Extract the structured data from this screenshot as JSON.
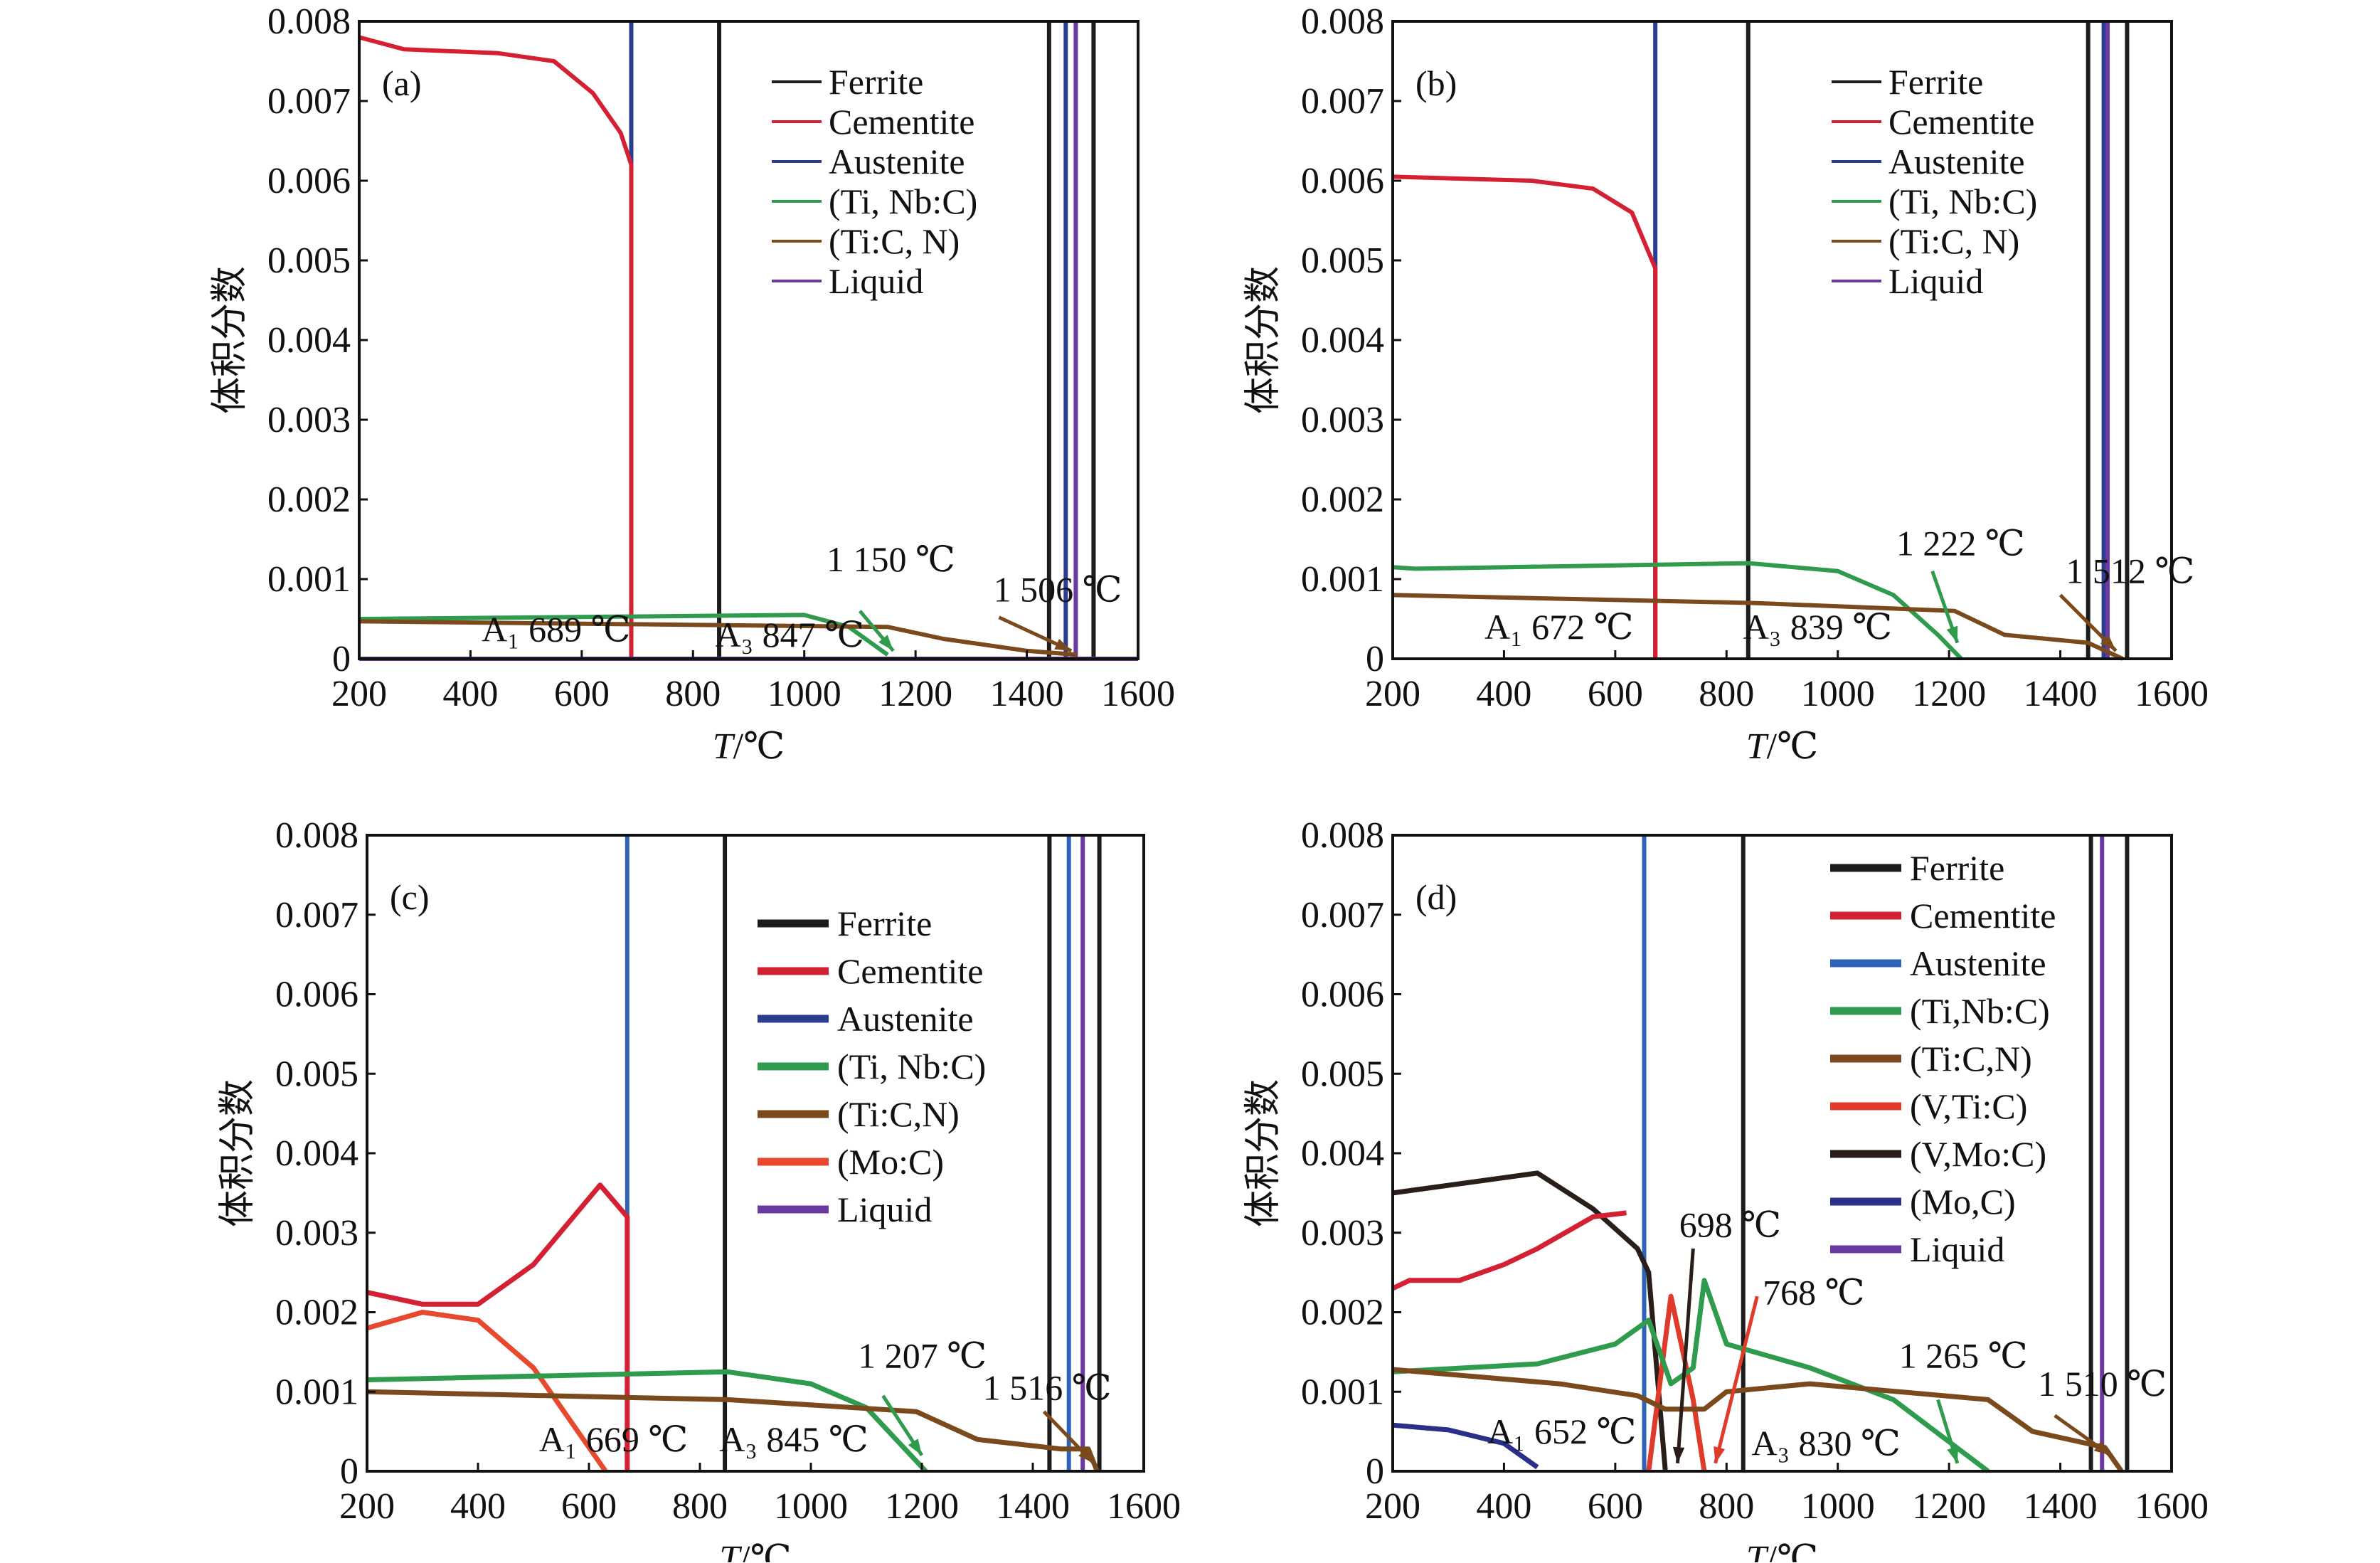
{
  "colors": {
    "ferrite": "#1c1c1c",
    "cementite": "#d42033",
    "austenite_ab": "#2a3d8f",
    "austenite_cd": "#2f63b8",
    "tinbc": "#2e9b4d",
    "ticn": "#7a4a1c",
    "liquid": "#6a3aa0",
    "moc": "#e8482e",
    "vtic": "#e03a2a",
    "vmoc": "#2a1e1a",
    "mo_c": "#2a2f8a"
  },
  "chart_data": [
    {
      "type": "line",
      "panel_label": "(a)",
      "ylabel": "体积分数",
      "xlabel_var": "T",
      "xlabel_unit": "/℃",
      "xlim": [
        200,
        1600
      ],
      "ylim": [
        0,
        0.008
      ],
      "grid": false,
      "legend_placement": "top-right",
      "xticks": [
        "200",
        "400",
        "600",
        "800",
        "1000",
        "1200",
        "1400",
        "1600"
      ],
      "yticks": [
        "0",
        "0.001",
        "0.002",
        "0.003",
        "0.004",
        "0.005",
        "0.006",
        "0.007",
        "0.008"
      ],
      "legend": [
        {
          "name": "Ferrite",
          "color": "ferrite"
        },
        {
          "name": "Cementite",
          "color": "cementite"
        },
        {
          "name": "Austenite",
          "color": "austenite_ab"
        },
        {
          "name": "(Ti, Nb:C)",
          "color": "tinbc"
        },
        {
          "name": "(Ti:C, N)",
          "color": "ticn"
        },
        {
          "name": "Liquid",
          "color": "liquid"
        }
      ],
      "series": [
        {
          "name": "Cementite",
          "color": "cementite",
          "points": [
            [
              200,
              0.0078
            ],
            [
              280,
              0.00765
            ],
            [
              450,
              0.0076
            ],
            [
              550,
              0.0075
            ],
            [
              620,
              0.0071
            ],
            [
              670,
              0.0066
            ],
            [
              689,
              0.0062
            ],
            [
              689,
              0
            ]
          ]
        },
        {
          "name": "(Ti, Nb:C)",
          "color": "tinbc",
          "points": [
            [
              200,
              0.0005
            ],
            [
              1000,
              0.00055
            ],
            [
              1080,
              0.0004
            ],
            [
              1150,
              5e-05
            ]
          ]
        },
        {
          "name": "(Ti:C, N)",
          "color": "ticn",
          "points": [
            [
              200,
              0.00047
            ],
            [
              1150,
              0.0004
            ],
            [
              1250,
              0.00025
            ],
            [
              1400,
              0.0001
            ],
            [
              1490,
              5e-05
            ]
          ]
        },
        {
          "name": "Liquid",
          "color": "liquid",
          "points": [
            [
              200,
              0.0
            ],
            [
              1600,
              0.0
            ]
          ]
        }
      ],
      "vlines": [
        {
          "x": 689,
          "color": "austenite_ab"
        },
        {
          "x": 847,
          "color": "ferrite"
        },
        {
          "x": 1440,
          "color": "ferrite"
        },
        {
          "x": 1470,
          "color": "austenite_ab"
        },
        {
          "x": 1488,
          "color": "liquid"
        },
        {
          "x": 1520,
          "color": "ferrite"
        }
      ],
      "arrows": [
        {
          "color": "tinbc",
          "from": [
            1100,
            0.0006
          ],
          "to": [
            1160,
            0.0001
          ]
        },
        {
          "color": "ticn",
          "from": [
            1350,
            0.00052
          ],
          "to": [
            1480,
            0.0001
          ]
        }
      ],
      "annotations": [
        {
          "text": "A₁ 689 ℃",
          "x": 420,
          "y": 0.00022
        },
        {
          "text": "A₃ 847 ℃",
          "x": 840,
          "y": 0.00015
        },
        {
          "text": "1 150 ℃",
          "x": 1040,
          "y": 0.0011
        },
        {
          "text": "1 506 ℃",
          "x": 1340,
          "y": 0.00072
        }
      ]
    },
    {
      "type": "line",
      "panel_label": "(b)",
      "ylabel": "体积分数",
      "xlabel_var": "T",
      "xlabel_unit": "/℃",
      "xlim": [
        200,
        1600
      ],
      "ylim": [
        0,
        0.008
      ],
      "grid": false,
      "legend_placement": "top-right",
      "xticks": [
        "200",
        "400",
        "600",
        "800",
        "1000",
        "1200",
        "1400",
        "1600"
      ],
      "yticks": [
        "0",
        "0.001",
        "0.002",
        "0.003",
        "0.004",
        "0.005",
        "0.006",
        "0.007",
        "0.008"
      ],
      "legend": [
        {
          "name": "Ferrite",
          "color": "ferrite"
        },
        {
          "name": "Cementite",
          "color": "cementite"
        },
        {
          "name": "Austenite",
          "color": "austenite_ab"
        },
        {
          "name": "(Ti, Nb:C)",
          "color": "tinbc"
        },
        {
          "name": "(Ti:C, N)",
          "color": "ticn"
        },
        {
          "name": "Liquid",
          "color": "liquid"
        }
      ],
      "series": [
        {
          "name": "Cementite",
          "color": "cementite",
          "points": [
            [
              200,
              0.00605
            ],
            [
              450,
              0.006
            ],
            [
              560,
              0.0059
            ],
            [
              630,
              0.0056
            ],
            [
              672,
              0.0049
            ],
            [
              672,
              0
            ]
          ]
        },
        {
          "name": "(Ti, Nb:C)",
          "color": "tinbc",
          "points": [
            [
              200,
              0.00115
            ],
            [
              240,
              0.00113
            ],
            [
              840,
              0.0012
            ],
            [
              1000,
              0.0011
            ],
            [
              1100,
              0.0008
            ],
            [
              1180,
              0.0003
            ],
            [
              1222,
              0
            ]
          ]
        },
        {
          "name": "(Ti:C, N)",
          "color": "ticn",
          "points": [
            [
              200,
              0.0008
            ],
            [
              850,
              0.0007
            ],
            [
              1210,
              0.0006
            ],
            [
              1300,
              0.0003
            ],
            [
              1450,
              0.0002
            ],
            [
              1512,
              0
            ]
          ]
        }
      ],
      "vlines": [
        {
          "x": 672,
          "color": "austenite_ab"
        },
        {
          "x": 839,
          "color": "ferrite"
        },
        {
          "x": 1450,
          "color": "ferrite"
        },
        {
          "x": 1478,
          "color": "austenite_ab"
        },
        {
          "x": 1485,
          "color": "liquid"
        },
        {
          "x": 1520,
          "color": "ferrite"
        }
      ],
      "arrows": [
        {
          "color": "tinbc",
          "from": [
            1170,
            0.0011
          ],
          "to": [
            1215,
            0.0002
          ]
        },
        {
          "color": "ticn",
          "from": [
            1400,
            0.0008
          ],
          "to": [
            1500,
            0.0001
          ]
        }
      ],
      "annotations": [
        {
          "text": "A₁ 672 ℃",
          "x": 365,
          "y": 0.00025
        },
        {
          "text": "A₃ 839 ℃",
          "x": 830,
          "y": 0.00025
        },
        {
          "text": "1 222 ℃",
          "x": 1105,
          "y": 0.0013
        },
        {
          "text": "1 512 ℃",
          "x": 1410,
          "y": 0.00095
        }
      ]
    },
    {
      "type": "line",
      "panel_label": "(c)",
      "ylabel": "体积分数",
      "xlabel_var": "T",
      "xlabel_unit": "/℃",
      "xlim": [
        200,
        1600
      ],
      "ylim": [
        0,
        0.008
      ],
      "grid": false,
      "legend_placement": "center-right",
      "xticks": [
        "200",
        "400",
        "600",
        "800",
        "1000",
        "1200",
        "1400",
        "1600"
      ],
      "yticks": [
        "0",
        "0.001",
        "0.002",
        "0.003",
        "0.004",
        "0.005",
        "0.006",
        "0.007",
        "0.008"
      ],
      "legend": [
        {
          "name": "Ferrite",
          "color": "ferrite"
        },
        {
          "name": "Cementite",
          "color": "cementite"
        },
        {
          "name": "Austenite",
          "color": "austenite_ab"
        },
        {
          "name": "(Ti, Nb:C)",
          "color": "tinbc"
        },
        {
          "name": "(Ti:C,N)",
          "color": "ticn"
        },
        {
          "name": "(Mo:C)",
          "color": "moc"
        },
        {
          "name": "Liquid",
          "color": "liquid"
        }
      ],
      "series": [
        {
          "name": "Cementite",
          "color": "cementite",
          "points": [
            [
              200,
              0.00225
            ],
            [
              300,
              0.0021
            ],
            [
              400,
              0.0021
            ],
            [
              500,
              0.0026
            ],
            [
              620,
              0.0036
            ],
            [
              669,
              0.0032
            ],
            [
              669,
              0
            ]
          ]
        },
        {
          "name": "(Mo:C)",
          "color": "moc",
          "points": [
            [
              200,
              0.0018
            ],
            [
              300,
              0.002
            ],
            [
              400,
              0.0019
            ],
            [
              500,
              0.0013
            ],
            [
              580,
              0.0005
            ],
            [
              630,
              0
            ]
          ]
        },
        {
          "name": "(Ti, Nb:C)",
          "color": "tinbc",
          "points": [
            [
              200,
              0.00115
            ],
            [
              850,
              0.00125
            ],
            [
              1000,
              0.0011
            ],
            [
              1100,
              0.0008
            ],
            [
              1207,
              0
            ]
          ]
        },
        {
          "name": "(Ti:C,N)",
          "color": "ticn",
          "points": [
            [
              200,
              0.001
            ],
            [
              850,
              0.0009
            ],
            [
              1190,
              0.00075
            ],
            [
              1300,
              0.0004
            ],
            [
              1450,
              0.00028
            ],
            [
              1500,
              0.00028
            ],
            [
              1516,
              0
            ]
          ]
        }
      ],
      "vlines": [
        {
          "x": 669,
          "color": "austenite_cd"
        },
        {
          "x": 845,
          "color": "ferrite"
        },
        {
          "x": 1430,
          "color": "ferrite"
        },
        {
          "x": 1465,
          "color": "austenite_cd"
        },
        {
          "x": 1490,
          "color": "liquid"
        },
        {
          "x": 1520,
          "color": "ferrite"
        }
      ],
      "arrows": [
        {
          "color": "tinbc",
          "from": [
            1130,
            0.00095
          ],
          "to": [
            1200,
            0.0002
          ]
        },
        {
          "color": "ticn",
          "from": [
            1420,
            0.00075
          ],
          "to": [
            1510,
            0.0001
          ]
        }
      ],
      "annotations": [
        {
          "text": "A₁ 669 ℃",
          "x": 510,
          "y": 0.00025
        },
        {
          "text": "A₃ 845 ℃",
          "x": 835,
          "y": 0.00025
        },
        {
          "text": "1 207 ℃",
          "x": 1085,
          "y": 0.0013
        },
        {
          "text": "1 516 ℃",
          "x": 1310,
          "y": 0.0009
        }
      ]
    },
    {
      "type": "line",
      "panel_label": "(d)",
      "ylabel": "体积分数",
      "xlabel_var": "T",
      "xlabel_unit": "/℃",
      "xlim": [
        200,
        1600
      ],
      "ylim": [
        0,
        0.008
      ],
      "grid": false,
      "legend_placement": "top-right",
      "xticks": [
        "200",
        "400",
        "600",
        "800",
        "1000",
        "1200",
        "1400",
        "1600"
      ],
      "yticks": [
        "0",
        "0.001",
        "0.002",
        "0.003",
        "0.004",
        "0.005",
        "0.006",
        "0.007",
        "0.008"
      ],
      "legend": [
        {
          "name": "Ferrite",
          "color": "ferrite"
        },
        {
          "name": "Cementite",
          "color": "cementite"
        },
        {
          "name": "Austenite",
          "color": "austenite_cd"
        },
        {
          "name": "(Ti,Nb:C)",
          "color": "tinbc"
        },
        {
          "name": "(Ti:C,N)",
          "color": "ticn"
        },
        {
          "name": "(V,Ti:C)",
          "color": "vtic"
        },
        {
          "name": "(V,Mo:C)",
          "color": "vmoc"
        },
        {
          "name": "(Mo,C)",
          "color": "mo_c"
        },
        {
          "name": "Liquid",
          "color": "liquid"
        }
      ],
      "series": [
        {
          "name": "(V,Mo:C)",
          "color": "vmoc",
          "points": [
            [
              200,
              0.0035
            ],
            [
              460,
              0.00375
            ],
            [
              560,
              0.0033
            ],
            [
              640,
              0.0028
            ],
            [
              660,
              0.0025
            ],
            [
              690,
              0
            ]
          ]
        },
        {
          "name": "Cementite",
          "color": "cementite",
          "points": [
            [
              200,
              0.0023
            ],
            [
              230,
              0.0024
            ],
            [
              320,
              0.0024
            ],
            [
              400,
              0.0026
            ],
            [
              460,
              0.0028
            ],
            [
              560,
              0.0032
            ],
            [
              620,
              0.00325
            ]
          ]
        },
        {
          "name": "(V,Ti:C)",
          "color": "vtic",
          "points": [
            [
              660,
              0
            ],
            [
              700,
              0.0022
            ],
            [
              740,
              0.0009
            ],
            [
              760,
              0
            ]
          ]
        },
        {
          "name": "(Ti,Nb:C)",
          "color": "tinbc",
          "points": [
            [
              200,
              0.00125
            ],
            [
              460,
              0.00135
            ],
            [
              600,
              0.0016
            ],
            [
              660,
              0.0019
            ],
            [
              700,
              0.0011
            ],
            [
              740,
              0.0013
            ],
            [
              760,
              0.0024
            ],
            [
              800,
              0.0016
            ],
            [
              950,
              0.0013
            ],
            [
              1100,
              0.0009
            ],
            [
              1270,
              0
            ]
          ]
        },
        {
          "name": "(Ti:C,N)",
          "color": "ticn",
          "points": [
            [
              200,
              0.00128
            ],
            [
              500,
              0.0011
            ],
            [
              640,
              0.00095
            ],
            [
              690,
              0.00078
            ],
            [
              760,
              0.00078
            ],
            [
              800,
              0.001
            ],
            [
              950,
              0.0011
            ],
            [
              1270,
              0.0009
            ],
            [
              1350,
              0.0005
            ],
            [
              1480,
              0.0003
            ],
            [
              1510,
              0
            ]
          ]
        },
        {
          "name": "(Mo,C)",
          "color": "mo_c",
          "points": [
            [
              200,
              0.00058
            ],
            [
              300,
              0.00052
            ],
            [
              400,
              0.00035
            ],
            [
              460,
              5e-05
            ]
          ]
        }
      ],
      "vlines": [
        {
          "x": 652,
          "color": "austenite_cd"
        },
        {
          "x": 830,
          "color": "ferrite"
        },
        {
          "x": 1455,
          "color": "ferrite"
        },
        {
          "x": 1475,
          "color": "liquid"
        },
        {
          "x": 1520,
          "color": "ferrite"
        }
      ],
      "arrows": [
        {
          "color": "vmoc",
          "from": [
            740,
            0.0028
          ],
          "to": [
            712,
            0.0001
          ]
        },
        {
          "color": "vtic",
          "from": [
            855,
            0.0022
          ],
          "to": [
            780,
            0.0001
          ]
        },
        {
          "color": "tinbc",
          "from": [
            1180,
            0.0009
          ],
          "to": [
            1215,
            0.0001
          ]
        },
        {
          "color": "ticn",
          "from": [
            1390,
            0.0007
          ],
          "to": [
            1490,
            0.0002
          ]
        }
      ],
      "annotations": [
        {
          "text": "698 ℃",
          "x": 715,
          "y": 0.00295
        },
        {
          "text": "768 ℃",
          "x": 865,
          "y": 0.0021
        },
        {
          "text": "A₁ 652 ℃",
          "x": 370,
          "y": 0.00035
        },
        {
          "text": "A₃ 830 ℃",
          "x": 845,
          "y": 0.0002
        },
        {
          "text": "1 265 ℃",
          "x": 1110,
          "y": 0.0013
        },
        {
          "text": "1 510 ℃",
          "x": 1360,
          "y": 0.00095
        }
      ]
    }
  ]
}
